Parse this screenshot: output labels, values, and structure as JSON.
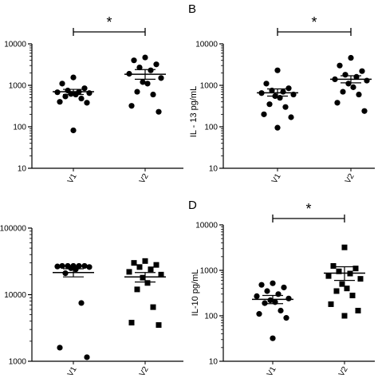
{
  "chart_data": [
    {
      "type": "scatter",
      "panel_label": "",
      "ylabel": "",
      "yscale": "log",
      "ylim": [
        10,
        10000
      ],
      "yticks": [
        "10",
        "100",
        "1000",
        "10000"
      ],
      "categories": [
        "V1",
        "V2"
      ],
      "marker": "circle",
      "significance": "*",
      "series": [
        {
          "category": "V1",
          "values": [
            1550,
            1100,
            850,
            750,
            700,
            680,
            650,
            620,
            600,
            540,
            480,
            400,
            380,
            82
          ],
          "mean": 700,
          "sem_low": 600,
          "sem_high": 800
        },
        {
          "category": "V2",
          "values": [
            4700,
            4000,
            3200,
            2700,
            2300,
            1900,
            1500,
            1200,
            1100,
            700,
            600,
            320,
            230
          ],
          "mean": 1850,
          "sem_low": 1400,
          "sem_high": 2400
        }
      ]
    },
    {
      "type": "scatter",
      "panel_label": "B",
      "ylabel": "IL - 13 pg/mL",
      "yscale": "log",
      "ylim": [
        10,
        10000
      ],
      "yticks": [
        "10",
        "100",
        "1000",
        "10000"
      ],
      "categories": [
        "V1",
        "V2"
      ],
      "marker": "circle",
      "significance": "*",
      "series": [
        {
          "category": "V1",
          "values": [
            2300,
            1100,
            850,
            750,
            700,
            650,
            600,
            550,
            500,
            350,
            300,
            200,
            170,
            95
          ],
          "mean": 660,
          "sem_low": 550,
          "sem_high": 820
        },
        {
          "category": "V2",
          "values": [
            4600,
            3000,
            2200,
            1800,
            1600,
            1400,
            1300,
            1100,
            900,
            700,
            600,
            380,
            240
          ],
          "mean": 1400,
          "sem_low": 1150,
          "sem_high": 1700
        }
      ]
    },
    {
      "type": "scatter",
      "panel_label": "",
      "ylabel": "",
      "yscale": "log",
      "ylim": [
        1000,
        100000
      ],
      "yticks": [
        "1000",
        "10000",
        "100000"
      ],
      "categories": [
        "V1",
        "V2"
      ],
      "marker": "mixed",
      "significance": "",
      "series": [
        {
          "category": "V1",
          "marker": "circle",
          "values": [
            27000,
            27000,
            27000,
            27000,
            27000,
            26500,
            26000,
            25000,
            24000,
            21000,
            7500,
            1600,
            1150
          ],
          "mean": 21500,
          "sem_low": 18500,
          "sem_high": 24500
        },
        {
          "category": "V2",
          "marker": "square",
          "values": [
            32000,
            30000,
            28000,
            26000,
            24000,
            22000,
            20000,
            18000,
            15000,
            12000,
            6500,
            3800,
            3500
          ],
          "mean": 18500,
          "sem_low": 15500,
          "sem_high": 21500
        }
      ]
    },
    {
      "type": "scatter",
      "panel_label": "D",
      "ylabel": "IL-10 pg/mL",
      "yscale": "log",
      "ylim": [
        10,
        10000
      ],
      "yticks": [
        "10",
        "100",
        "1000",
        "10000"
      ],
      "categories": [
        "V1",
        "V2"
      ],
      "marker": "mixed",
      "significance": "*",
      "series": [
        {
          "category": "V1",
          "marker": "circle",
          "values": [
            520,
            480,
            420,
            350,
            300,
            270,
            240,
            220,
            200,
            190,
            130,
            110,
            90,
            32
          ],
          "mean": 230,
          "sem_low": 185,
          "sem_high": 280
        },
        {
          "category": "V2",
          "marker": "square",
          "values": [
            3200,
            1250,
            1100,
            950,
            850,
            750,
            650,
            500,
            400,
            350,
            280,
            180,
            130,
            100
          ],
          "mean": 870,
          "sem_low": 600,
          "sem_high": 1200
        }
      ]
    }
  ]
}
